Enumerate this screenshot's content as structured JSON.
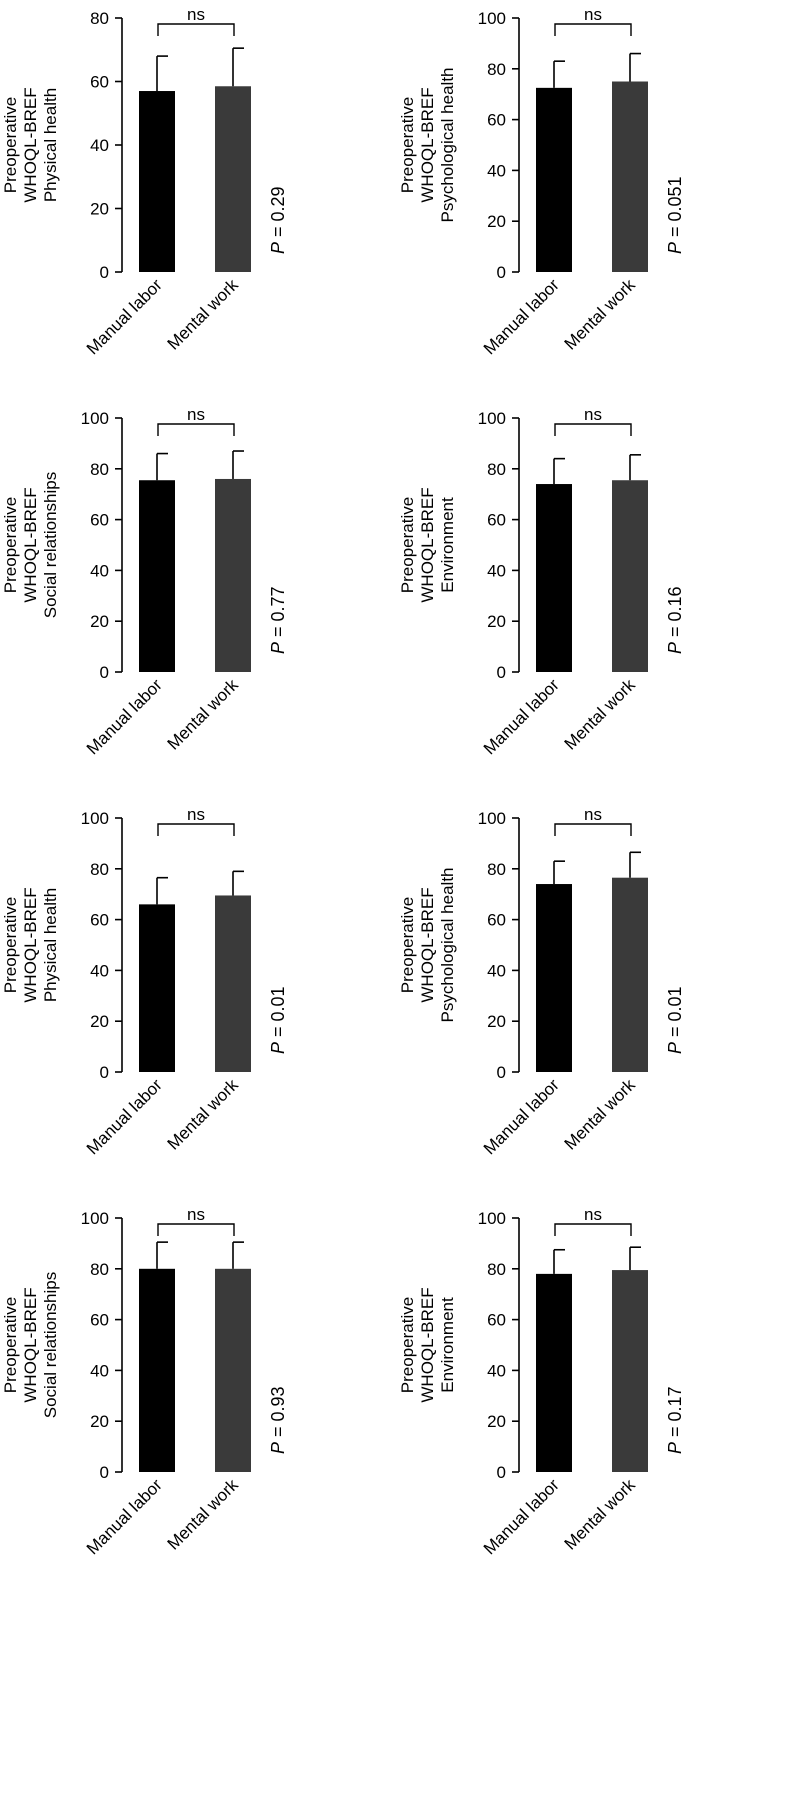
{
  "colors": {
    "manual": "#000000",
    "mental": "#3a3a3a",
    "axis": "#000000",
    "background": "#ffffff"
  },
  "chart_data": [
    {
      "type": "bar",
      "ylabel": [
        "Preoperative",
        "WHOQL-BREF",
        "Physical health"
      ],
      "categories": [
        "Manual labor",
        "Mental work"
      ],
      "values": [
        57,
        58.5
      ],
      "errors": [
        11,
        12
      ],
      "ylim": [
        0,
        80
      ],
      "yticks": [
        "0",
        "20",
        "40",
        "60",
        "80"
      ],
      "significance": "ns",
      "p_value": "= 0.29"
    },
    {
      "type": "bar",
      "ylabel": [
        "Preoperative",
        "WHOQL-BREF",
        "Psychological health"
      ],
      "categories": [
        "Manual labor",
        "Mental work"
      ],
      "values": [
        72.5,
        75
      ],
      "errors": [
        10.5,
        11
      ],
      "ylim": [
        0,
        100
      ],
      "yticks": [
        "0",
        "20",
        "40",
        "60",
        "80",
        "100"
      ],
      "significance": "ns",
      "p_value": "= 0.051"
    },
    {
      "type": "bar",
      "ylabel": [
        "Preoperative",
        "WHOQL-BREF",
        "Social relationships"
      ],
      "categories": [
        "Manual labor",
        "Mental work"
      ],
      "values": [
        75.5,
        76
      ],
      "errors": [
        10.5,
        11
      ],
      "ylim": [
        0,
        100
      ],
      "yticks": [
        "0",
        "20",
        "40",
        "60",
        "80",
        "100"
      ],
      "significance": "ns",
      "p_value": "= 0.77"
    },
    {
      "type": "bar",
      "ylabel": [
        "Preoperative",
        "WHOQL-BREF",
        "Environment"
      ],
      "categories": [
        "Manual labor",
        "Mental work"
      ],
      "values": [
        74,
        75.5
      ],
      "errors": [
        10,
        10
      ],
      "ylim": [
        0,
        100
      ],
      "yticks": [
        "0",
        "20",
        "40",
        "60",
        "80",
        "100"
      ],
      "significance": "ns",
      "p_value": "= 0.16"
    },
    {
      "type": "bar",
      "ylabel": [
        "Preoperative",
        "WHOQL-BREF",
        "Physical health"
      ],
      "categories": [
        "Manual labor",
        "Mental work"
      ],
      "values": [
        66,
        69.5
      ],
      "errors": [
        10.5,
        9.5
      ],
      "ylim": [
        0,
        100
      ],
      "yticks": [
        "0",
        "20",
        "40",
        "60",
        "80",
        "100"
      ],
      "significance": "ns",
      "p_value": "= 0.01"
    },
    {
      "type": "bar",
      "ylabel": [
        "Preoperative",
        "WHOQL-BREF",
        "Psychological health"
      ],
      "categories": [
        "Manual labor",
        "Mental work"
      ],
      "values": [
        74,
        76.5
      ],
      "errors": [
        9,
        10
      ],
      "ylim": [
        0,
        100
      ],
      "yticks": [
        "0",
        "20",
        "40",
        "60",
        "80",
        "100"
      ],
      "significance": "ns",
      "p_value": "= 0.01"
    },
    {
      "type": "bar",
      "ylabel": [
        "Preoperative",
        "WHOQL-BREF",
        "Social relationships"
      ],
      "categories": [
        "Manual labor",
        "Mental work"
      ],
      "values": [
        80,
        80
      ],
      "errors": [
        10.5,
        10.5
      ],
      "ylim": [
        0,
        100
      ],
      "yticks": [
        "0",
        "20",
        "40",
        "60",
        "80",
        "100"
      ],
      "significance": "ns",
      "p_value": "= 0.93"
    },
    {
      "type": "bar",
      "ylabel": [
        "Preoperative",
        "WHOQL-BREF",
        "Environment"
      ],
      "categories": [
        "Manual labor",
        "Mental work"
      ],
      "values": [
        78,
        79.5
      ],
      "errors": [
        9.5,
        9
      ],
      "ylim": [
        0,
        100
      ],
      "yticks": [
        "0",
        "20",
        "40",
        "60",
        "80",
        "100"
      ],
      "significance": "ns",
      "p_value": "= 0.17"
    }
  ],
  "p_symbol": "P"
}
